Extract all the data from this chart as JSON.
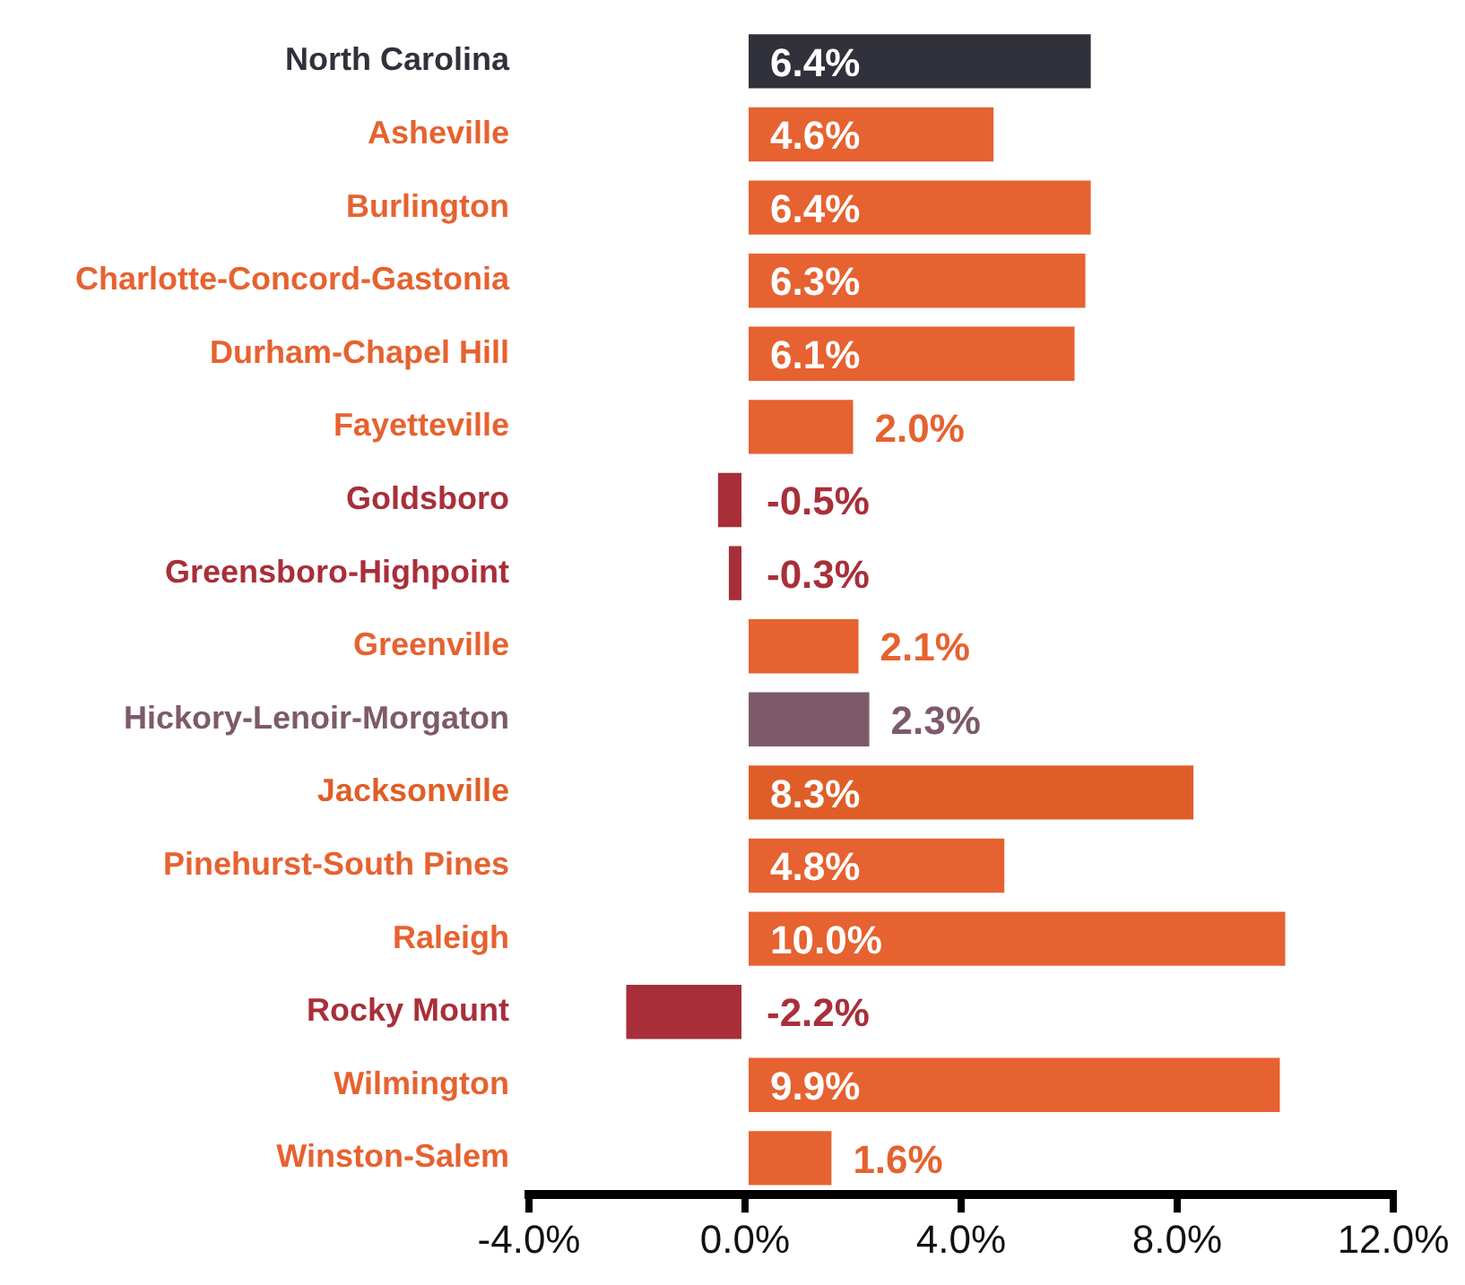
{
  "chart_data": {
    "type": "bar",
    "orientation": "horizontal",
    "categories": [
      "North Carolina",
      "Asheville",
      "Burlington",
      "Charlotte-Concord-Gastonia",
      "Durham-Chapel Hill",
      "Fayetteville",
      "Goldsboro",
      "Greensboro-Highpoint",
      "Greenville",
      "Hickory-Lenoir-Morgaton",
      "Jacksonville",
      "Pinehurst-South Pines",
      "Raleigh",
      "Rocky Mount",
      "Wilmington",
      "Winston-Salem"
    ],
    "values": [
      6.4,
      4.6,
      6.4,
      6.3,
      6.1,
      2.0,
      -0.5,
      -0.3,
      2.1,
      2.3,
      8.3,
      4.8,
      10.0,
      -2.2,
      9.9,
      1.6
    ],
    "colors": [
      "#31313b",
      "#e66230",
      "#e66230",
      "#e66230",
      "#e66230",
      "#e66230",
      "#a82f3a",
      "#a82f3a",
      "#e66230",
      "#7d5a6a",
      "#df5e27",
      "#e66230",
      "#e66230",
      "#a82f3a",
      "#e66230",
      "#e66230"
    ],
    "value_labels": [
      "6.4%",
      "4.6%",
      "6.4%",
      "6.3%",
      "6.1%",
      "2.0%",
      "-0.5%",
      "-0.3%",
      "2.1%",
      "2.3%",
      "8.3%",
      "4.8%",
      "10.0%",
      "-2.2%",
      "9.9%",
      "1.6%"
    ],
    "xlim": [
      -4,
      12
    ],
    "xticks": [
      {
        "value": -4,
        "label": "-4.0%"
      },
      {
        "value": 0,
        "label": "0.0%"
      },
      {
        "value": 4,
        "label": "4.0%"
      },
      {
        "value": 8,
        "label": "8.0%"
      },
      {
        "value": 12,
        "label": "12.0%"
      }
    ],
    "grid": false,
    "legend": false
  }
}
